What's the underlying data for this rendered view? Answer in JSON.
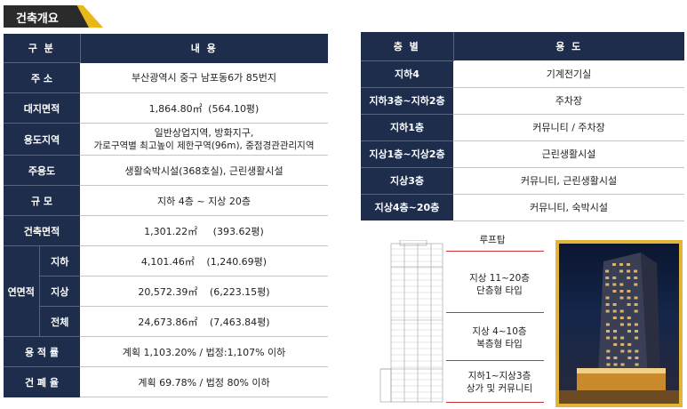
{
  "section_title": "건축개요",
  "overview": {
    "header": {
      "col1": "구  분",
      "col2": "내  용"
    },
    "rows": [
      {
        "label": "주  소",
        "value": "부산광역시 중구 남포동6가 85번지"
      },
      {
        "label": "대지면적",
        "value_a": "1,864.80㎡",
        "value_b": "(564.10평)"
      },
      {
        "label": "용도지역",
        "line1": "일반상업지역, 방화지구,",
        "line2": "가로구역별 최고높이 제한구역(96m),  중점경관관리지역"
      },
      {
        "label": "주용도",
        "value": "생활숙박시설(368호실), 근린생활시설"
      },
      {
        "label": "규  모",
        "value": "지하 4층 ~ 지상 20층"
      },
      {
        "label": "건축면적",
        "value_a": "1,301.22㎡",
        "value_b": "(393.62평)"
      }
    ],
    "gfa": {
      "label": "연면적",
      "rows": [
        {
          "sub": "지하",
          "value_a": "4,101.46㎡",
          "value_b": "(1,240.69평)"
        },
        {
          "sub": "지상",
          "value_a": "20,572.39㎡",
          "value_b": "(6,223.15평)"
        },
        {
          "sub": "전체",
          "value_a": "24,673.86㎡",
          "value_b": "(7,463.84평)"
        }
      ]
    },
    "far": {
      "label": "용 적 률",
      "value": "계획 1,103.20%   /  법정:1,107% 이하"
    },
    "bcr": {
      "label": "건 폐 율",
      "value": "계획 69.78%   /  법정 80% 이하"
    }
  },
  "floors": {
    "header": {
      "col1": "층  별",
      "col2": "용 도"
    },
    "rows": [
      {
        "floor": "지하4",
        "use": "기계전기실"
      },
      {
        "floor": "지하3층~지하2층",
        "use": "주차장"
      },
      {
        "floor": "지하1층",
        "use": "커뮤니티 / 주차장"
      },
      {
        "floor": "지상1층~지상2층",
        "use": "근린생활시설"
      },
      {
        "floor": "지상3층",
        "use": "커뮤니티, 근린생활시설"
      },
      {
        "floor": "지상4층~20층",
        "use": "커뮤니티, 숙박시설"
      }
    ]
  },
  "diagram": {
    "rooftop": "루프탑",
    "zone1_l1": "지상 11~20층",
    "zone1_l2": "단층형 타입",
    "zone2_l1": "지상 4~10층",
    "zone2_l2": "복층형 타입",
    "zone3_l1": "지하1~지상3층",
    "zone3_l2": "상가 및 커뮤니티"
  },
  "colors": {
    "navy": "#1f2d4c",
    "accent": "#e8b81a",
    "leader": "#cc3333"
  }
}
